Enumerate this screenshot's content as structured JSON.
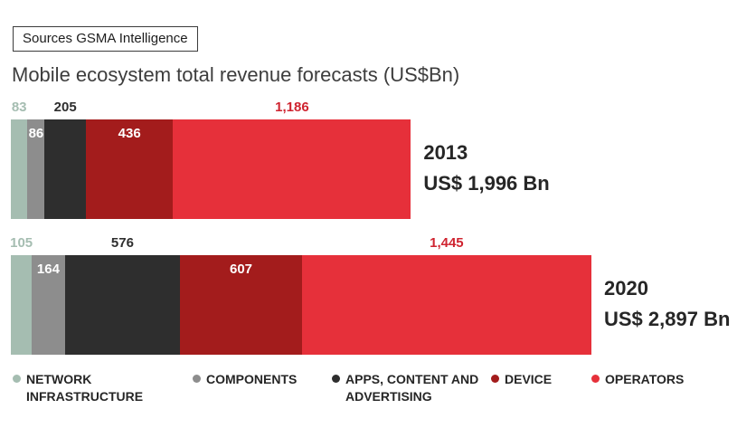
{
  "source_label": "Sources GSMA Intelligence",
  "chart_data": {
    "type": "bar",
    "variant": "horizontal-stacked",
    "title": "Mobile ecosystem total revenue forecasts (US$Bn)",
    "unit": "US$Bn",
    "categories": [
      "2013",
      "2020"
    ],
    "series": [
      {
        "name": "NETWORK INFRASTRUCTURE",
        "color": "#a5bdb1",
        "label_color": "#a5bdb1",
        "values": [
          83,
          105
        ],
        "label_position": "above"
      },
      {
        "name": "COMPONENTS",
        "color": "#8d8d8d",
        "label_color": "#ffffff",
        "values": [
          86,
          164
        ],
        "label_position": "inside"
      },
      {
        "name": "APPS, CONTENT AND ADVERTISING",
        "color": "#2e2e2e",
        "label_color": "#2e2e2e",
        "values": [
          205,
          576
        ],
        "label_position": "above"
      },
      {
        "name": "DEVICE",
        "color": "#a31c1c",
        "label_color": "#ffffff",
        "values": [
          436,
          607
        ],
        "label_position": "inside"
      },
      {
        "name": "OPERATORS",
        "color": "#e6303a",
        "label_color": "#cf2430",
        "values": [
          1186,
          1445
        ],
        "label_position": "above"
      }
    ],
    "totals": [
      {
        "category": "2013",
        "label": "US$ 1,996 Bn",
        "value": 1996
      },
      {
        "category": "2020",
        "label": "US$ 2,897 Bn",
        "value": 2897
      }
    ],
    "legend_position": "bottom",
    "grid": false
  }
}
